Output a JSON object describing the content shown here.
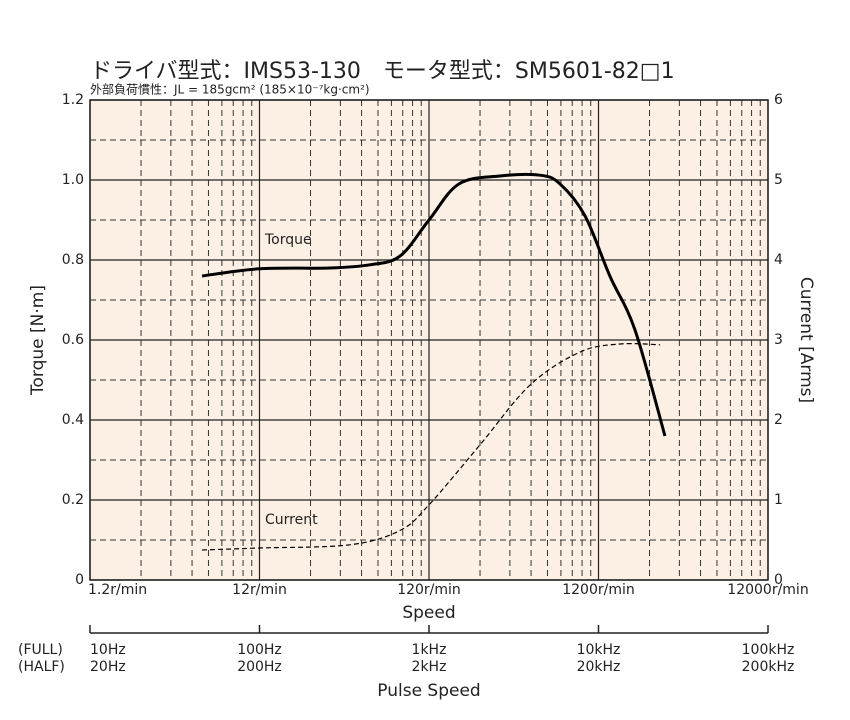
{
  "chart_data": {
    "type": "line",
    "title": "ドライバ型式：IMS53-130　モータ型式：SM5601-82□1",
    "subtitle": "外部負荷慣性：JL = 185gcm² (185×10⁻⁷kg·cm²)",
    "xlabel": "Speed",
    "ylabel": "Torque  [N·m]",
    "y2label": "Current  [Arms]",
    "xscale": "log",
    "grid": true,
    "xlim": [
      1.2,
      12000
    ],
    "xticks": [
      {
        "value": 1.2,
        "label": "1.2r/min"
      },
      {
        "value": 12,
        "label": "12r/min"
      },
      {
        "value": 120,
        "label": "120r/min"
      },
      {
        "value": 1200,
        "label": "1200r/min"
      },
      {
        "value": 12000,
        "label": "12000r/min"
      }
    ],
    "xminor_ticks": [
      2.4,
      3.6,
      4.8,
      6,
      7.2,
      8.4,
      9.6,
      10.8,
      24,
      36,
      48,
      60,
      72,
      84,
      96,
      108,
      240,
      360,
      480,
      600,
      720,
      840,
      960,
      1080,
      2400,
      3600,
      4800,
      6000,
      7200,
      8400,
      9600,
      10800
    ],
    "ylim": [
      0,
      1.2
    ],
    "yticks": [
      0,
      0.2,
      0.4,
      0.6,
      0.8,
      {
        "value": 1,
        "label": "1.0"
      },
      1.2
    ],
    "yminor_ticks": [
      0.1,
      0.3,
      0.5,
      0.7,
      0.9,
      1.1
    ],
    "y2lim": [
      0,
      6
    ],
    "y2ticks": [
      0,
      1,
      2,
      3,
      4,
      5,
      6
    ],
    "pulse_axis": {
      "label": "Pulse Speed",
      "row_labels": [
        "(FULL)",
        "(HALF)"
      ],
      "ticks": [
        {
          "value": 1.2,
          "full": "10Hz",
          "half": "20Hz"
        },
        {
          "value": 12,
          "full": "100Hz",
          "half": "200Hz"
        },
        {
          "value": 120,
          "full": "1kHz",
          "half": "2kHz"
        },
        {
          "value": 1200,
          "full": "10kHz",
          "half": "20kHz"
        },
        {
          "value": 12000,
          "full": "100kHz",
          "half": "200kHz"
        }
      ]
    },
    "series": [
      {
        "name": "Torque",
        "color": "#000000",
        "axis": "y",
        "x": [
          5.5,
          12,
          31.2,
          53.7,
          81,
          120,
          180,
          315,
          542,
          712,
          1000,
          1400,
          1970,
          2960
        ],
        "values": [
          0.76,
          0.778,
          0.78,
          0.788,
          0.81,
          0.9,
          0.99,
          1.01,
          1.012,
          0.99,
          0.91,
          0.76,
          0.625,
          0.36
        ]
      },
      {
        "name": "Current",
        "color": "#000000",
        "axis": "y2",
        "dashed": true,
        "x": [
          5.5,
          12,
          41,
          81,
          120,
          240,
          475,
          935,
          1610,
          2770
        ],
        "values": [
          0.375,
          0.4,
          0.44,
          0.62,
          0.94,
          1.69,
          2.44,
          2.85,
          2.95,
          2.94
        ]
      }
    ]
  }
}
